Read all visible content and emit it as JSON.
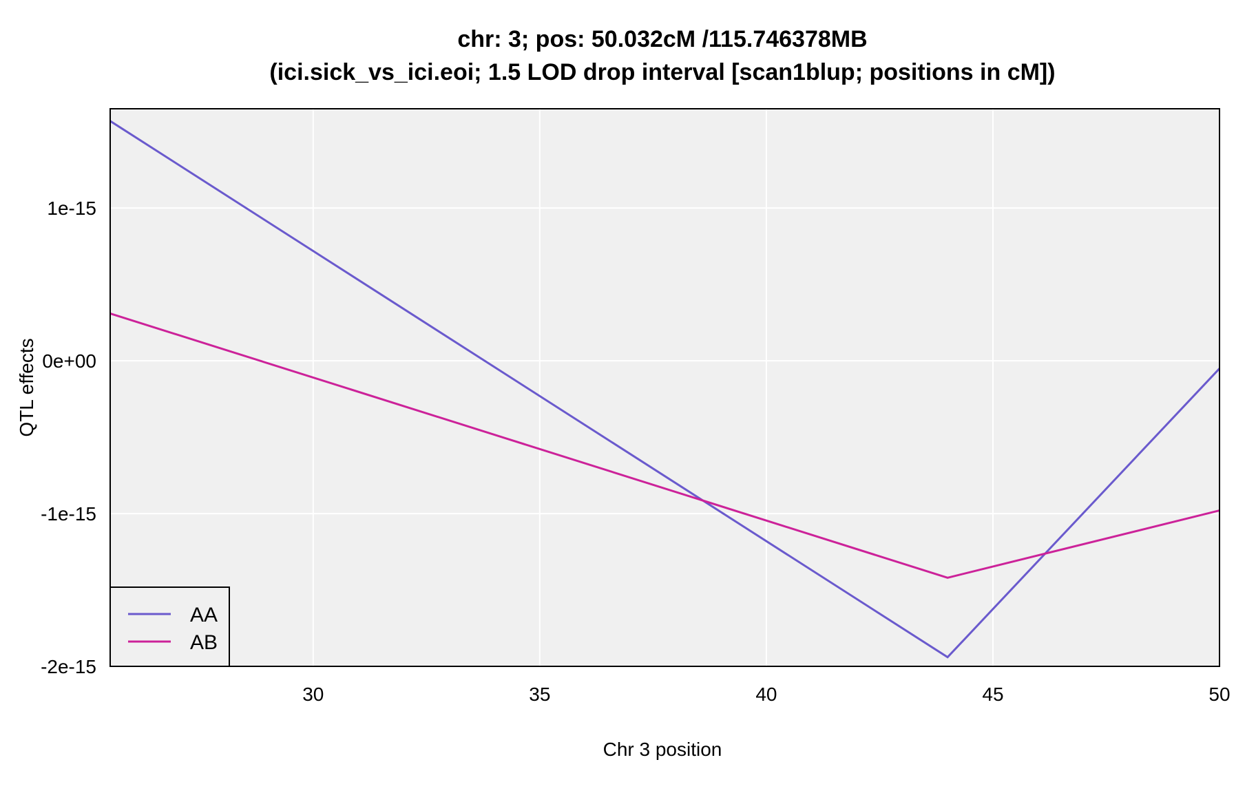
{
  "chart_data": {
    "type": "line",
    "title": "chr: 3; pos: 50.032cM /115.746378MB",
    "subtitle": "(ici.sick_vs_ici.eoi; 1.5 LOD drop interval [scan1blup; positions in cM])",
    "xlabel": "Chr 3 position",
    "ylabel": "QTL effects",
    "xlim": [
      25.52,
      50.0
    ],
    "ylim": [
      -2e-15,
      1.65e-15
    ],
    "x_ticks": [
      30,
      35,
      40,
      45,
      50
    ],
    "x_tick_labels": [
      "30",
      "35",
      "40",
      "45",
      "50"
    ],
    "y_ticks": [
      -2e-15,
      -1e-15,
      0,
      1e-15
    ],
    "y_tick_labels": [
      "-2e-15",
      "-1e-15",
      "0e+00",
      "1e-15"
    ],
    "grid": true,
    "legend_position": "bottom-left",
    "series": [
      {
        "name": "AA",
        "color": "#6a5acd",
        "x": [
          25.52,
          44.0,
          50.0
        ],
        "y": [
          1.57e-15,
          -1.94e-15,
          -5e-17
        ]
      },
      {
        "name": "AB",
        "color": "#cc2299",
        "x": [
          25.52,
          44.0,
          50.0
        ],
        "y": [
          3.1e-16,
          -1.42e-15,
          -9.8e-16
        ]
      }
    ]
  }
}
